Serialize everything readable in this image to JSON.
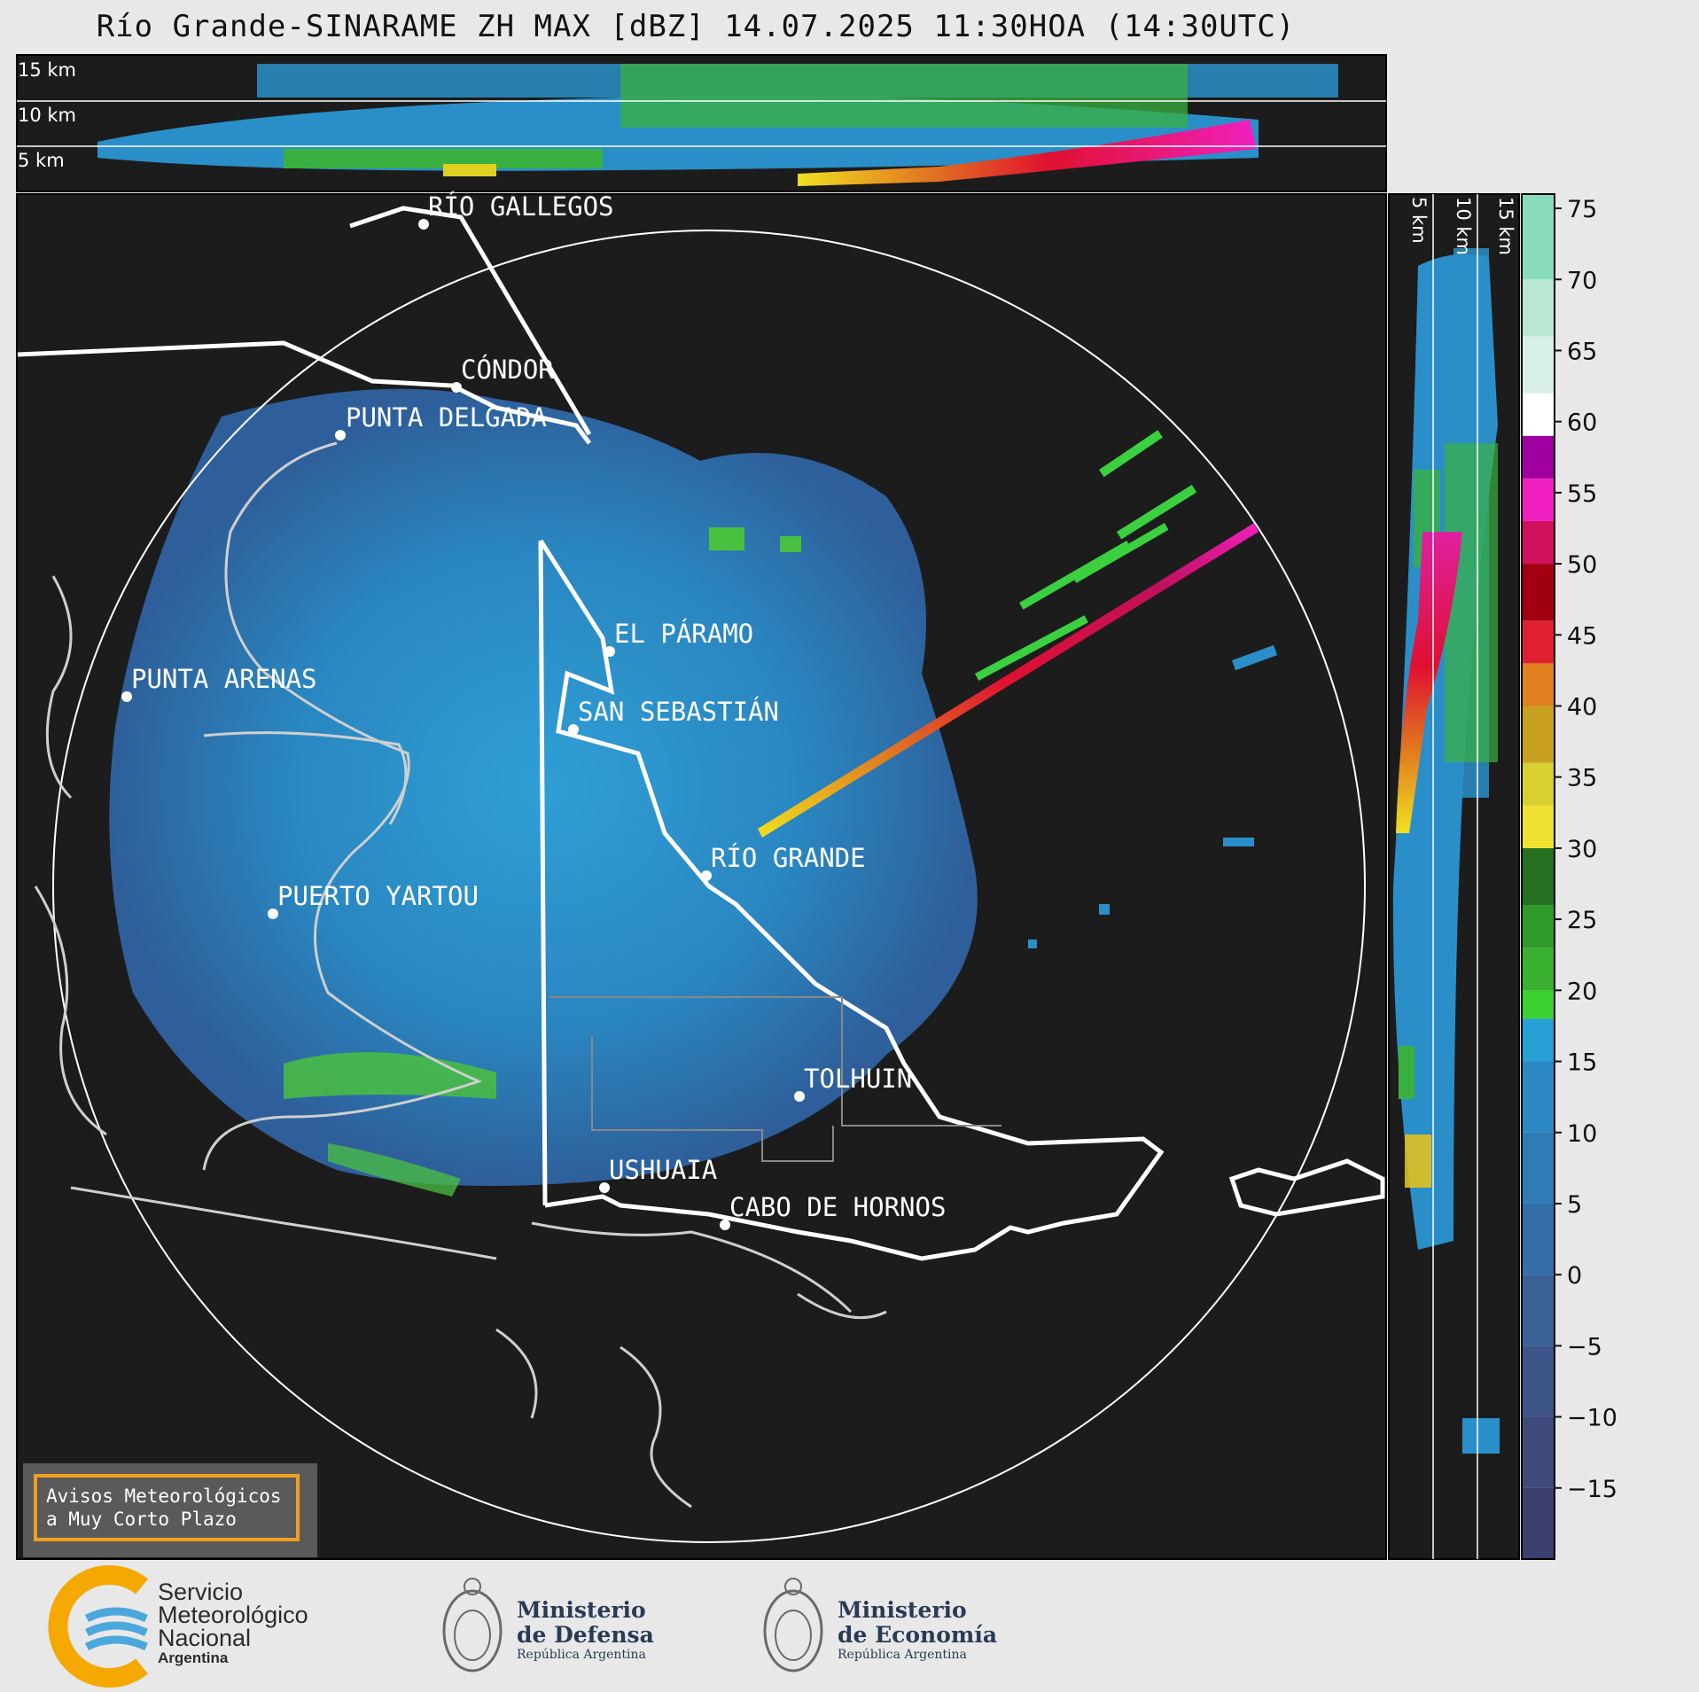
{
  "title": "Río Grande-SINARAME ZH MAX [dBZ] 14.07.2025 11:30HOA (14:30UTC)",
  "top_panel": {
    "height_labels": [
      "15 km",
      "10 km",
      "5 km"
    ]
  },
  "side_panel": {
    "height_labels": [
      "5 km",
      "10 km",
      "15 km"
    ]
  },
  "colorbar": {
    "unit": "dBZ",
    "ticks": [
      "75",
      "70",
      "65",
      "60",
      "55",
      "50",
      "45",
      "40",
      "35",
      "30",
      "25",
      "20",
      "15",
      "10",
      "5",
      "0",
      "−5",
      "−10",
      "−15"
    ],
    "min": -20,
    "max": 76
  },
  "cities": [
    {
      "name": "RÍO GALLEGOS"
    },
    {
      "name": "CÓNDOR"
    },
    {
      "name": "PUNTA DELGADA"
    },
    {
      "name": "EL PÁRAMO"
    },
    {
      "name": "PUNTA ARENAS"
    },
    {
      "name": "SAN SEBASTIÁN"
    },
    {
      "name": "RÍO GRANDE"
    },
    {
      "name": "PUERTO YARTOU"
    },
    {
      "name": "TOLHUIN"
    },
    {
      "name": "USHUAIA"
    },
    {
      "name": "CABO DE HORNOS"
    }
  ],
  "notice": {
    "text": "Avisos Meteorológicos\na Muy Corto Plazo"
  },
  "logos": {
    "smn": {
      "line1": "Servicio",
      "line2": "Meteorológico",
      "line3": "Nacional",
      "line4": "Argentina"
    },
    "defensa": {
      "line1": "Ministerio",
      "line2": "de Defensa",
      "line3": "República Argentina"
    },
    "economia": {
      "line1": "Ministerio",
      "line2": "de Economía",
      "line3": "República Argentina"
    }
  },
  "colors": {
    "panel_bg": "#1c1c1c",
    "echo": "#2a8fc8",
    "strong": "#d0105a"
  }
}
